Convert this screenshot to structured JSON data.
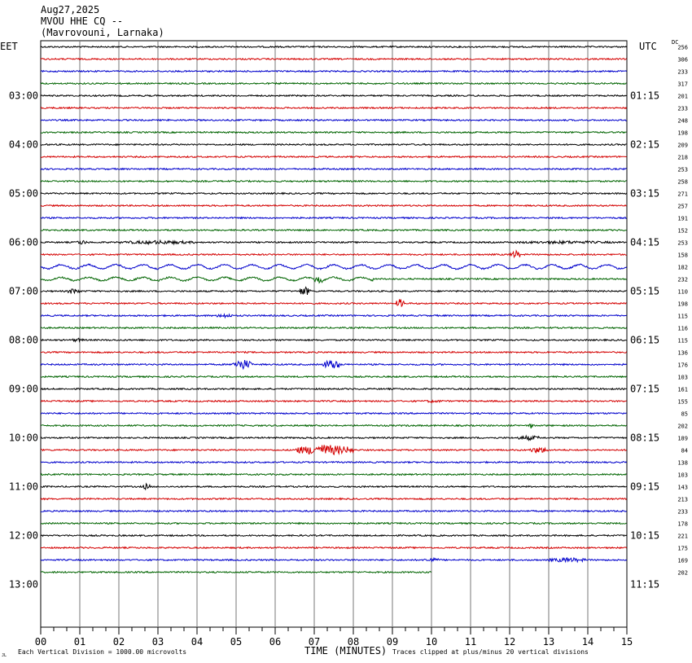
{
  "header": {
    "date": "Aug27,2025",
    "station": "MVOU HHE CQ --",
    "location": "(Mavrovouni, Larnaka)"
  },
  "left_timezone_label": "EET",
  "right_timezone_label": "UTC",
  "dc_column_label": "DC",
  "footer": {
    "scale_note": "Each Vertical Division = 1000.00 microvolts",
    "clip_note": "Traces clipped at plus/minus 20 vertical divisions",
    "corner_mark": "JL"
  },
  "chart_data": {
    "type": "line",
    "title": "",
    "xlabel": "TIME (MINUTES)",
    "ylabel": "",
    "xlim": [
      0,
      15
    ],
    "x_ticks": [
      "00",
      "01",
      "02",
      "03",
      "04",
      "05",
      "06",
      "07",
      "08",
      "09",
      "10",
      "11",
      "12",
      "13",
      "14",
      "15"
    ],
    "trace_colors": [
      "#000000",
      "#d40000",
      "#0000cc",
      "#006400"
    ],
    "left_hour_labels": [
      "03:00",
      "04:00",
      "05:00",
      "06:00",
      "07:00",
      "08:00",
      "09:00",
      "10:00",
      "11:00",
      "12:00",
      "13:00"
    ],
    "right_hour_labels": [
      "01:15",
      "02:15",
      "03:15",
      "04:15",
      "05:15",
      "06:15",
      "07:15",
      "08:15",
      "09:15",
      "10:15",
      "11:15"
    ],
    "dc_offsets": [
      256,
      306,
      233,
      317,
      201,
      233,
      248,
      198,
      209,
      218,
      253,
      258,
      271,
      257,
      191,
      152,
      253,
      158,
      182,
      232,
      110,
      198,
      115,
      116,
      115,
      136,
      176,
      103,
      161,
      155,
      85,
      202,
      189,
      84,
      138,
      103,
      143,
      213,
      233,
      178,
      221,
      175,
      169,
      202
    ],
    "events": [
      {
        "trace": 16,
        "start": 0.9,
        "end": 1.2,
        "amp": 3
      },
      {
        "trace": 16,
        "start": 2.0,
        "end": 4.0,
        "amp": 2.5
      },
      {
        "trace": 16,
        "start": 12.0,
        "end": 14.8,
        "amp": 2
      },
      {
        "trace": 17,
        "start": 12.0,
        "end": 12.3,
        "amp": 5
      },
      {
        "trace": 18,
        "start": 0.0,
        "end": 15.0,
        "amp": 2.5,
        "wave": true
      },
      {
        "trace": 19,
        "start": 0.0,
        "end": 8.5,
        "amp": 2,
        "wave": true
      },
      {
        "trace": 19,
        "start": 7.0,
        "end": 7.2,
        "amp": 5
      },
      {
        "trace": 20,
        "start": 0.7,
        "end": 1.0,
        "amp": 4
      },
      {
        "trace": 20,
        "start": 6.6,
        "end": 6.9,
        "amp": 6
      },
      {
        "trace": 21,
        "start": 9.1,
        "end": 9.3,
        "amp": 6
      },
      {
        "trace": 22,
        "start": 4.5,
        "end": 4.9,
        "amp": 3
      },
      {
        "trace": 24,
        "start": 0.8,
        "end": 1.1,
        "amp": 2.5
      },
      {
        "trace": 26,
        "start": 4.9,
        "end": 5.4,
        "amp": 7
      },
      {
        "trace": 26,
        "start": 7.2,
        "end": 7.7,
        "amp": 6
      },
      {
        "trace": 29,
        "start": 9.8,
        "end": 10.3,
        "amp": 2
      },
      {
        "trace": 31,
        "start": 12.5,
        "end": 12.6,
        "amp": 6
      },
      {
        "trace": 32,
        "start": 12.2,
        "end": 12.8,
        "amp": 3
      },
      {
        "trace": 33,
        "start": 6.5,
        "end": 8.0,
        "amp": 7
      },
      {
        "trace": 33,
        "start": 12.5,
        "end": 13.0,
        "amp": 4
      },
      {
        "trace": 36,
        "start": 2.6,
        "end": 2.8,
        "amp": 4
      },
      {
        "trace": 42,
        "start": 9.8,
        "end": 10.2,
        "amp": 3
      },
      {
        "trace": 42,
        "start": 13.0,
        "end": 14.0,
        "amp": 3
      }
    ],
    "last_trace_end_minute": 10.0
  }
}
